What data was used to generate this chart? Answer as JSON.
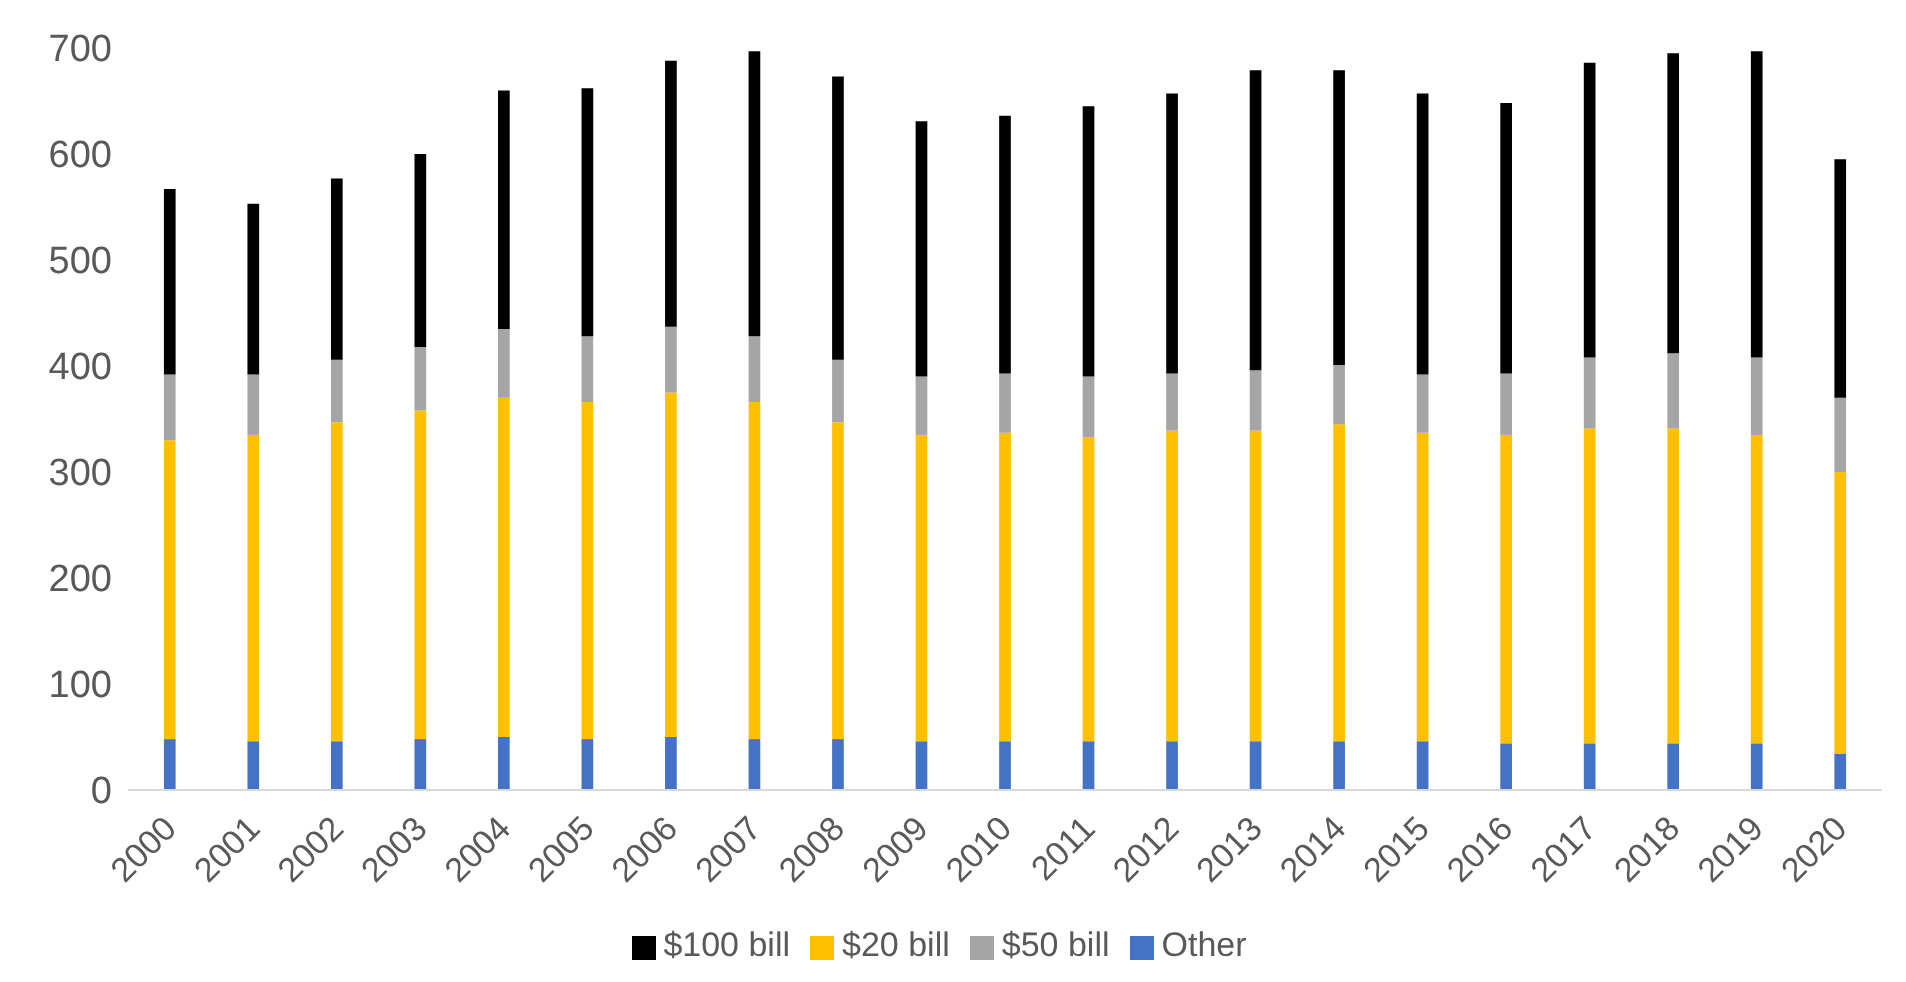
{
  "chart_data": {
    "type": "bar",
    "stacked": true,
    "categories": [
      "2000",
      "2001",
      "2002",
      "2003",
      "2004",
      "2005",
      "2006",
      "2007",
      "2008",
      "2009",
      "2010",
      "2011",
      "2012",
      "2013",
      "2014",
      "2015",
      "2016",
      "2017",
      "2018",
      "2019",
      "2020"
    ],
    "series": [
      {
        "name": "Other",
        "color": "#4472c4",
        "values": [
          48,
          46,
          46,
          48,
          50,
          48,
          50,
          48,
          48,
          46,
          46,
          46,
          46,
          46,
          46,
          46,
          44,
          44,
          44,
          44,
          34
        ]
      },
      {
        "name": "$20 bill",
        "color": "#ffc000",
        "values": [
          282,
          289,
          301,
          310,
          320,
          318,
          325,
          318,
          299,
          289,
          291,
          287,
          293,
          293,
          299,
          291,
          291,
          297,
          297,
          291,
          266
        ]
      },
      {
        "name": "$50 bill",
        "color": "#a5a5a5",
        "values": [
          62,
          57,
          59,
          60,
          65,
          62,
          62,
          62,
          59,
          55,
          56,
          57,
          54,
          57,
          56,
          55,
          58,
          67,
          71,
          73,
          70
        ]
      },
      {
        "name": "$100 bill",
        "color": "#000000",
        "values": [
          175,
          161,
          171,
          182,
          225,
          234,
          251,
          269,
          267,
          241,
          243,
          255,
          264,
          283,
          278,
          265,
          255,
          278,
          283,
          289,
          225
        ]
      }
    ],
    "ylim": [
      0,
      700
    ],
    "yticks": [
      0,
      100,
      200,
      300,
      400,
      500,
      600,
      700
    ],
    "grid": false,
    "legend": "bottom"
  }
}
